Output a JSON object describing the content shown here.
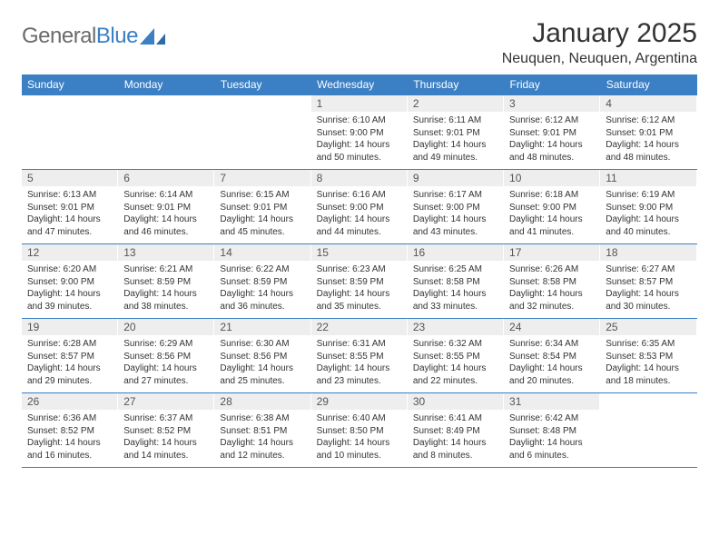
{
  "logo": {
    "text1": "General",
    "text2": "Blue"
  },
  "header": {
    "title": "January 2025",
    "location": "Neuquen, Neuquen, Argentina"
  },
  "dayNames": [
    "Sunday",
    "Monday",
    "Tuesday",
    "Wednesday",
    "Thursday",
    "Friday",
    "Saturday"
  ],
  "colors": {
    "headerBg": "#3b7fc4",
    "headerText": "#ffffff",
    "dayNumBg": "#eeeeee",
    "border": "#3b7fc4",
    "text": "#333333"
  },
  "typography": {
    "titleSize": 30,
    "subtitleSize": 16,
    "dayHeaderSize": 12,
    "dayNumSize": 12,
    "infoSize": 10
  },
  "weeks": [
    [
      {
        "n": "",
        "info": ""
      },
      {
        "n": "",
        "info": ""
      },
      {
        "n": "",
        "info": ""
      },
      {
        "n": "1",
        "info": "Sunrise: 6:10 AM\nSunset: 9:00 PM\nDaylight: 14 hours and 50 minutes."
      },
      {
        "n": "2",
        "info": "Sunrise: 6:11 AM\nSunset: 9:01 PM\nDaylight: 14 hours and 49 minutes."
      },
      {
        "n": "3",
        "info": "Sunrise: 6:12 AM\nSunset: 9:01 PM\nDaylight: 14 hours and 48 minutes."
      },
      {
        "n": "4",
        "info": "Sunrise: 6:12 AM\nSunset: 9:01 PM\nDaylight: 14 hours and 48 minutes."
      }
    ],
    [
      {
        "n": "5",
        "info": "Sunrise: 6:13 AM\nSunset: 9:01 PM\nDaylight: 14 hours and 47 minutes."
      },
      {
        "n": "6",
        "info": "Sunrise: 6:14 AM\nSunset: 9:01 PM\nDaylight: 14 hours and 46 minutes."
      },
      {
        "n": "7",
        "info": "Sunrise: 6:15 AM\nSunset: 9:01 PM\nDaylight: 14 hours and 45 minutes."
      },
      {
        "n": "8",
        "info": "Sunrise: 6:16 AM\nSunset: 9:00 PM\nDaylight: 14 hours and 44 minutes."
      },
      {
        "n": "9",
        "info": "Sunrise: 6:17 AM\nSunset: 9:00 PM\nDaylight: 14 hours and 43 minutes."
      },
      {
        "n": "10",
        "info": "Sunrise: 6:18 AM\nSunset: 9:00 PM\nDaylight: 14 hours and 41 minutes."
      },
      {
        "n": "11",
        "info": "Sunrise: 6:19 AM\nSunset: 9:00 PM\nDaylight: 14 hours and 40 minutes."
      }
    ],
    [
      {
        "n": "12",
        "info": "Sunrise: 6:20 AM\nSunset: 9:00 PM\nDaylight: 14 hours and 39 minutes."
      },
      {
        "n": "13",
        "info": "Sunrise: 6:21 AM\nSunset: 8:59 PM\nDaylight: 14 hours and 38 minutes."
      },
      {
        "n": "14",
        "info": "Sunrise: 6:22 AM\nSunset: 8:59 PM\nDaylight: 14 hours and 36 minutes."
      },
      {
        "n": "15",
        "info": "Sunrise: 6:23 AM\nSunset: 8:59 PM\nDaylight: 14 hours and 35 minutes."
      },
      {
        "n": "16",
        "info": "Sunrise: 6:25 AM\nSunset: 8:58 PM\nDaylight: 14 hours and 33 minutes."
      },
      {
        "n": "17",
        "info": "Sunrise: 6:26 AM\nSunset: 8:58 PM\nDaylight: 14 hours and 32 minutes."
      },
      {
        "n": "18",
        "info": "Sunrise: 6:27 AM\nSunset: 8:57 PM\nDaylight: 14 hours and 30 minutes."
      }
    ],
    [
      {
        "n": "19",
        "info": "Sunrise: 6:28 AM\nSunset: 8:57 PM\nDaylight: 14 hours and 29 minutes."
      },
      {
        "n": "20",
        "info": "Sunrise: 6:29 AM\nSunset: 8:56 PM\nDaylight: 14 hours and 27 minutes."
      },
      {
        "n": "21",
        "info": "Sunrise: 6:30 AM\nSunset: 8:56 PM\nDaylight: 14 hours and 25 minutes."
      },
      {
        "n": "22",
        "info": "Sunrise: 6:31 AM\nSunset: 8:55 PM\nDaylight: 14 hours and 23 minutes."
      },
      {
        "n": "23",
        "info": "Sunrise: 6:32 AM\nSunset: 8:55 PM\nDaylight: 14 hours and 22 minutes."
      },
      {
        "n": "24",
        "info": "Sunrise: 6:34 AM\nSunset: 8:54 PM\nDaylight: 14 hours and 20 minutes."
      },
      {
        "n": "25",
        "info": "Sunrise: 6:35 AM\nSunset: 8:53 PM\nDaylight: 14 hours and 18 minutes."
      }
    ],
    [
      {
        "n": "26",
        "info": "Sunrise: 6:36 AM\nSunset: 8:52 PM\nDaylight: 14 hours and 16 minutes."
      },
      {
        "n": "27",
        "info": "Sunrise: 6:37 AM\nSunset: 8:52 PM\nDaylight: 14 hours and 14 minutes."
      },
      {
        "n": "28",
        "info": "Sunrise: 6:38 AM\nSunset: 8:51 PM\nDaylight: 14 hours and 12 minutes."
      },
      {
        "n": "29",
        "info": "Sunrise: 6:40 AM\nSunset: 8:50 PM\nDaylight: 14 hours and 10 minutes."
      },
      {
        "n": "30",
        "info": "Sunrise: 6:41 AM\nSunset: 8:49 PM\nDaylight: 14 hours and 8 minutes."
      },
      {
        "n": "31",
        "info": "Sunrise: 6:42 AM\nSunset: 8:48 PM\nDaylight: 14 hours and 6 minutes."
      },
      {
        "n": "",
        "info": ""
      }
    ]
  ]
}
